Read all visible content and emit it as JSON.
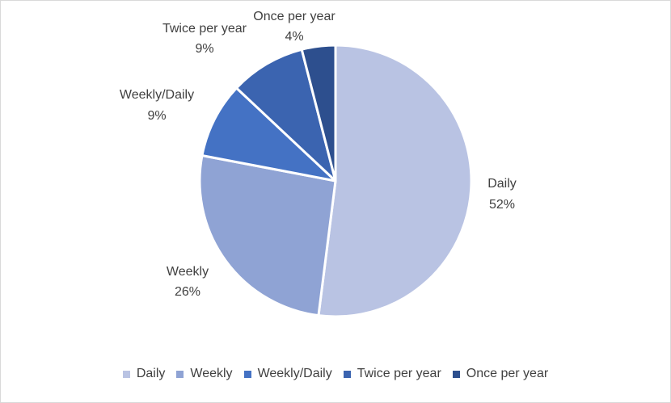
{
  "chart_data": {
    "type": "pie",
    "title": "",
    "slices": [
      {
        "label": "Daily",
        "percent_label": "52%",
        "value": 52,
        "color": "#b9c3e3"
      },
      {
        "label": "Weekly",
        "percent_label": "26%",
        "value": 26,
        "color": "#8fa3d4"
      },
      {
        "label": "Weekly/Daily",
        "percent_label": "9%",
        "value": 9,
        "color": "#4472c4"
      },
      {
        "label": "Twice per year",
        "percent_label": "9%",
        "value": 9,
        "color": "#3b64b0"
      },
      {
        "label": "Once per year",
        "percent_label": "4%",
        "value": 4,
        "color": "#2d4f8e"
      }
    ],
    "legend_position": "bottom",
    "start_angle_deg": 0,
    "direction": "clockwise"
  }
}
